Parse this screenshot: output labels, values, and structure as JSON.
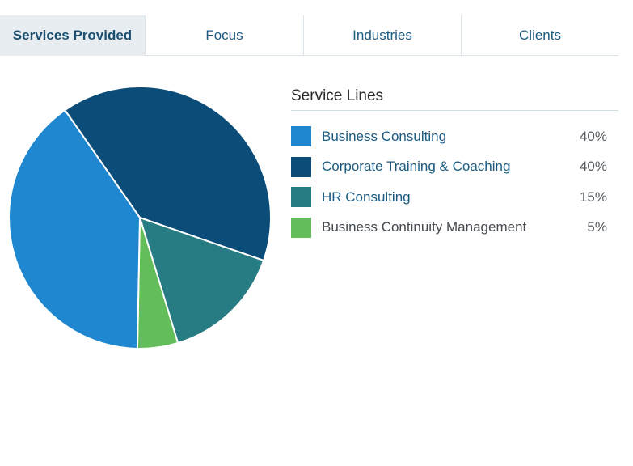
{
  "tabs": [
    {
      "label": "Services Provided",
      "active": true
    },
    {
      "label": "Focus",
      "active": false
    },
    {
      "label": "Industries",
      "active": false
    },
    {
      "label": "Clients",
      "active": false
    }
  ],
  "legend": {
    "title": "Service Lines"
  },
  "chart_data": {
    "type": "pie",
    "title": "Service Lines",
    "categories": [
      "Business Consulting",
      "Corporate Training & Coaching",
      "HR Consulting",
      "Business Continuity Management"
    ],
    "values": [
      40,
      40,
      15,
      5
    ],
    "value_labels": [
      "40%",
      "40%",
      "15%",
      "5%"
    ],
    "colors": [
      "#1e87cf",
      "#0b4d78",
      "#277c84",
      "#62bd5a"
    ],
    "legend_placement": "right"
  }
}
